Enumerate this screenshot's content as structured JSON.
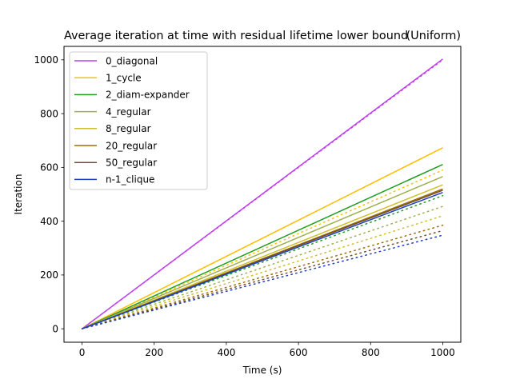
{
  "chart_data": {
    "type": "line",
    "title": "Average iteration at time with residual lifetime lower bound",
    "subtitle": "(Uniform)",
    "xlabel": "Time (s)",
    "ylabel": "Iteration",
    "xlim": [
      -50,
      1050
    ],
    "ylim": [
      -50,
      1050
    ],
    "xticks": [
      0,
      200,
      400,
      600,
      800,
      1000
    ],
    "yticks": [
      0,
      200,
      400,
      600,
      800,
      1000
    ],
    "grid": false,
    "legend_position": "top-left",
    "series": [
      {
        "name": "0_diagonal",
        "color": "#bf3fef",
        "x": [
          0,
          1000
        ],
        "y": [
          0,
          1003
        ],
        "lower_bound_y": [
          0,
          1000
        ]
      },
      {
        "name": "1_cycle",
        "color": "#ffbf00",
        "x": [
          0,
          1000
        ],
        "y": [
          0,
          673
        ],
        "lower_bound_y": [
          0,
          590
        ]
      },
      {
        "name": "2_diam-expander",
        "color": "#1f9f1f",
        "x": [
          0,
          1000
        ],
        "y": [
          0,
          611
        ],
        "lower_bound_y": [
          0,
          495
        ]
      },
      {
        "name": "4_regular",
        "color": "#9faf4f",
        "x": [
          0,
          1000
        ],
        "y": [
          0,
          566
        ],
        "lower_bound_y": [
          0,
          455
        ]
      },
      {
        "name": "8_regular",
        "color": "#cfbf2f",
        "x": [
          0,
          1000
        ],
        "y": [
          0,
          535
        ],
        "lower_bound_y": [
          0,
          420
        ]
      },
      {
        "name": "20_regular",
        "color": "#9f6f00",
        "x": [
          0,
          1000
        ],
        "y": [
          0,
          520
        ],
        "lower_bound_y": [
          0,
          385
        ]
      },
      {
        "name": "50_regular",
        "color": "#6f4f2f",
        "x": [
          0,
          1000
        ],
        "y": [
          0,
          515
        ],
        "lower_bound_y": [
          0,
          365
        ]
      },
      {
        "name": "n-1_clique",
        "color": "#1f3fbf",
        "x": [
          0,
          1000
        ],
        "y": [
          0,
          507
        ],
        "lower_bound_y": [
          0,
          348
        ]
      }
    ]
  }
}
